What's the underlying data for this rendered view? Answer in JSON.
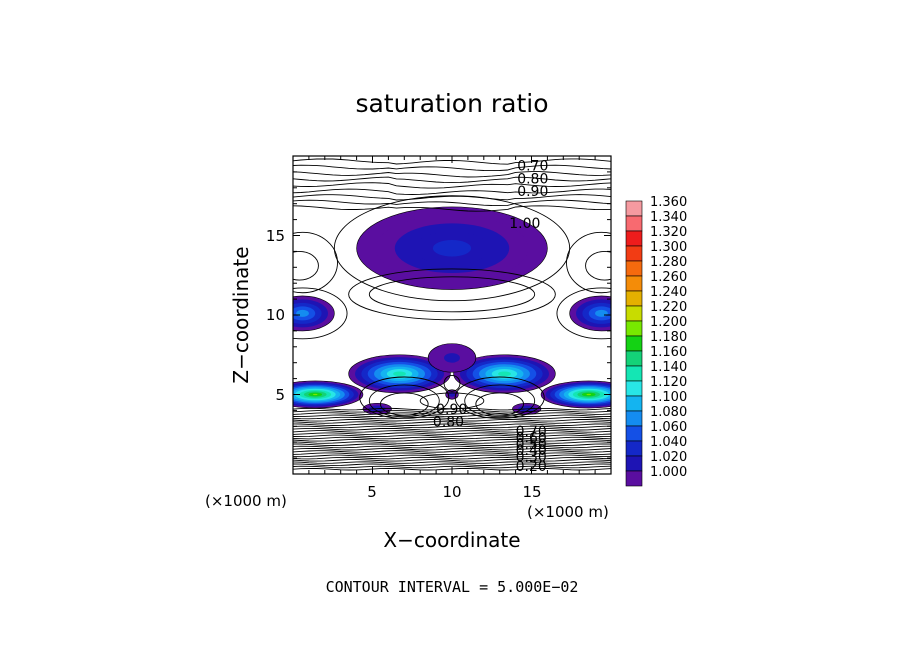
{
  "chart_data": {
    "type": "heatmap",
    "title": "saturation ratio",
    "xlabel": "X−coordinate",
    "ylabel": "Z−coordinate",
    "x_unit": "(×1000 m)",
    "y_unit": "(×1000 m)",
    "xlim": [
      0,
      20
    ],
    "ylim": [
      0,
      20
    ],
    "x_ticks": [
      5,
      10,
      15
    ],
    "y_ticks": [
      5,
      10,
      15
    ],
    "x_tick_labels": [
      "5",
      "10",
      "15"
    ],
    "y_tick_labels": [
      "5",
      "10",
      "15"
    ],
    "footer": "CONTOUR INTERVAL = 5.000E−02",
    "colorbar": {
      "levels": [
        "1.360",
        "1.340",
        "1.320",
        "1.300",
        "1.280",
        "1.260",
        "1.240",
        "1.220",
        "1.200",
        "1.180",
        "1.160",
        "1.140",
        "1.120",
        "1.100",
        "1.080",
        "1.060",
        "1.040",
        "1.020",
        "1.000"
      ],
      "colors": [
        "#f59aa0",
        "#f86a70",
        "#ee1c1c",
        "#f23c14",
        "#f56a0e",
        "#f48c08",
        "#e4b000",
        "#c8dc00",
        "#78e800",
        "#14d214",
        "#14d278",
        "#14e6b4",
        "#28e6e6",
        "#14b4f0",
        "#148cf0",
        "#1450e6",
        "#1428c8",
        "#1e14b4",
        "#5a0ea0"
      ]
    },
    "contour_labels": [
      {
        "text": "0.70",
        "x": 14.1,
        "z": 19.4
      },
      {
        "text": "0.80",
        "x": 14.1,
        "z": 18.6
      },
      {
        "text": "0.90",
        "x": 14.1,
        "z": 17.8
      },
      {
        "text": "1.00",
        "x": 13.6,
        "z": 15.8
      },
      {
        "text": "0.90",
        "x": 9.0,
        "z": 4.1
      },
      {
        "text": "0.80",
        "x": 8.8,
        "z": 3.3
      },
      {
        "text": "0.70",
        "x": 14.0,
        "z": 2.7
      },
      {
        "text": "0.60",
        "x": 14.0,
        "z": 2.3
      },
      {
        "text": "0.50",
        "x": 14.0,
        "z": 1.9
      },
      {
        "text": "0.40",
        "x": 14.0,
        "z": 1.5
      },
      {
        "text": "0.30",
        "x": 14.0,
        "z": 1.1
      },
      {
        "text": "0.20",
        "x": 14.0,
        "z": 0.5
      }
    ],
    "regions": [
      {
        "name": "upper-cloud",
        "cx": 10.0,
        "cz": 14.2,
        "rx": 6.0,
        "rz": 2.6,
        "peak": 1.045
      },
      {
        "name": "left-edge-cloud",
        "cx": 0.6,
        "cz": 10.1,
        "rx": 2.0,
        "rz": 1.1,
        "peak": 1.09
      },
      {
        "name": "right-edge-cloud",
        "cx": 19.4,
        "cz": 10.1,
        "rx": 2.0,
        "rz": 1.1,
        "peak": 1.09
      },
      {
        "name": "left-middle-cloud",
        "cx": 6.7,
        "cz": 6.3,
        "rx": 3.2,
        "rz": 1.2,
        "peak": 1.15
      },
      {
        "name": "right-middle-cloud",
        "cx": 13.3,
        "cz": 6.3,
        "rx": 3.2,
        "rz": 1.2,
        "peak": 1.15
      },
      {
        "name": "center-cloud",
        "cx": 10.0,
        "cz": 7.3,
        "rx": 1.5,
        "rz": 0.9,
        "peak": 1.02
      },
      {
        "name": "center-small-cloud",
        "cx": 10.0,
        "cz": 5.0,
        "rx": 0.4,
        "rz": 0.3,
        "peak": 1.03
      },
      {
        "name": "left-bottom-cloud",
        "cx": 1.4,
        "cz": 5.0,
        "rx": 3.0,
        "rz": 0.85,
        "peak": 1.2
      },
      {
        "name": "right-bottom-cloud",
        "cx": 18.6,
        "cz": 5.0,
        "rx": 3.0,
        "rz": 0.85,
        "peak": 1.2
      },
      {
        "name": "left-low-cloud",
        "cx": 5.3,
        "cz": 4.1,
        "rx": 0.9,
        "rz": 0.35,
        "peak": 1.04
      },
      {
        "name": "right-low-cloud",
        "cx": 14.7,
        "cz": 4.1,
        "rx": 0.9,
        "rz": 0.35,
        "peak": 1.04
      }
    ]
  }
}
